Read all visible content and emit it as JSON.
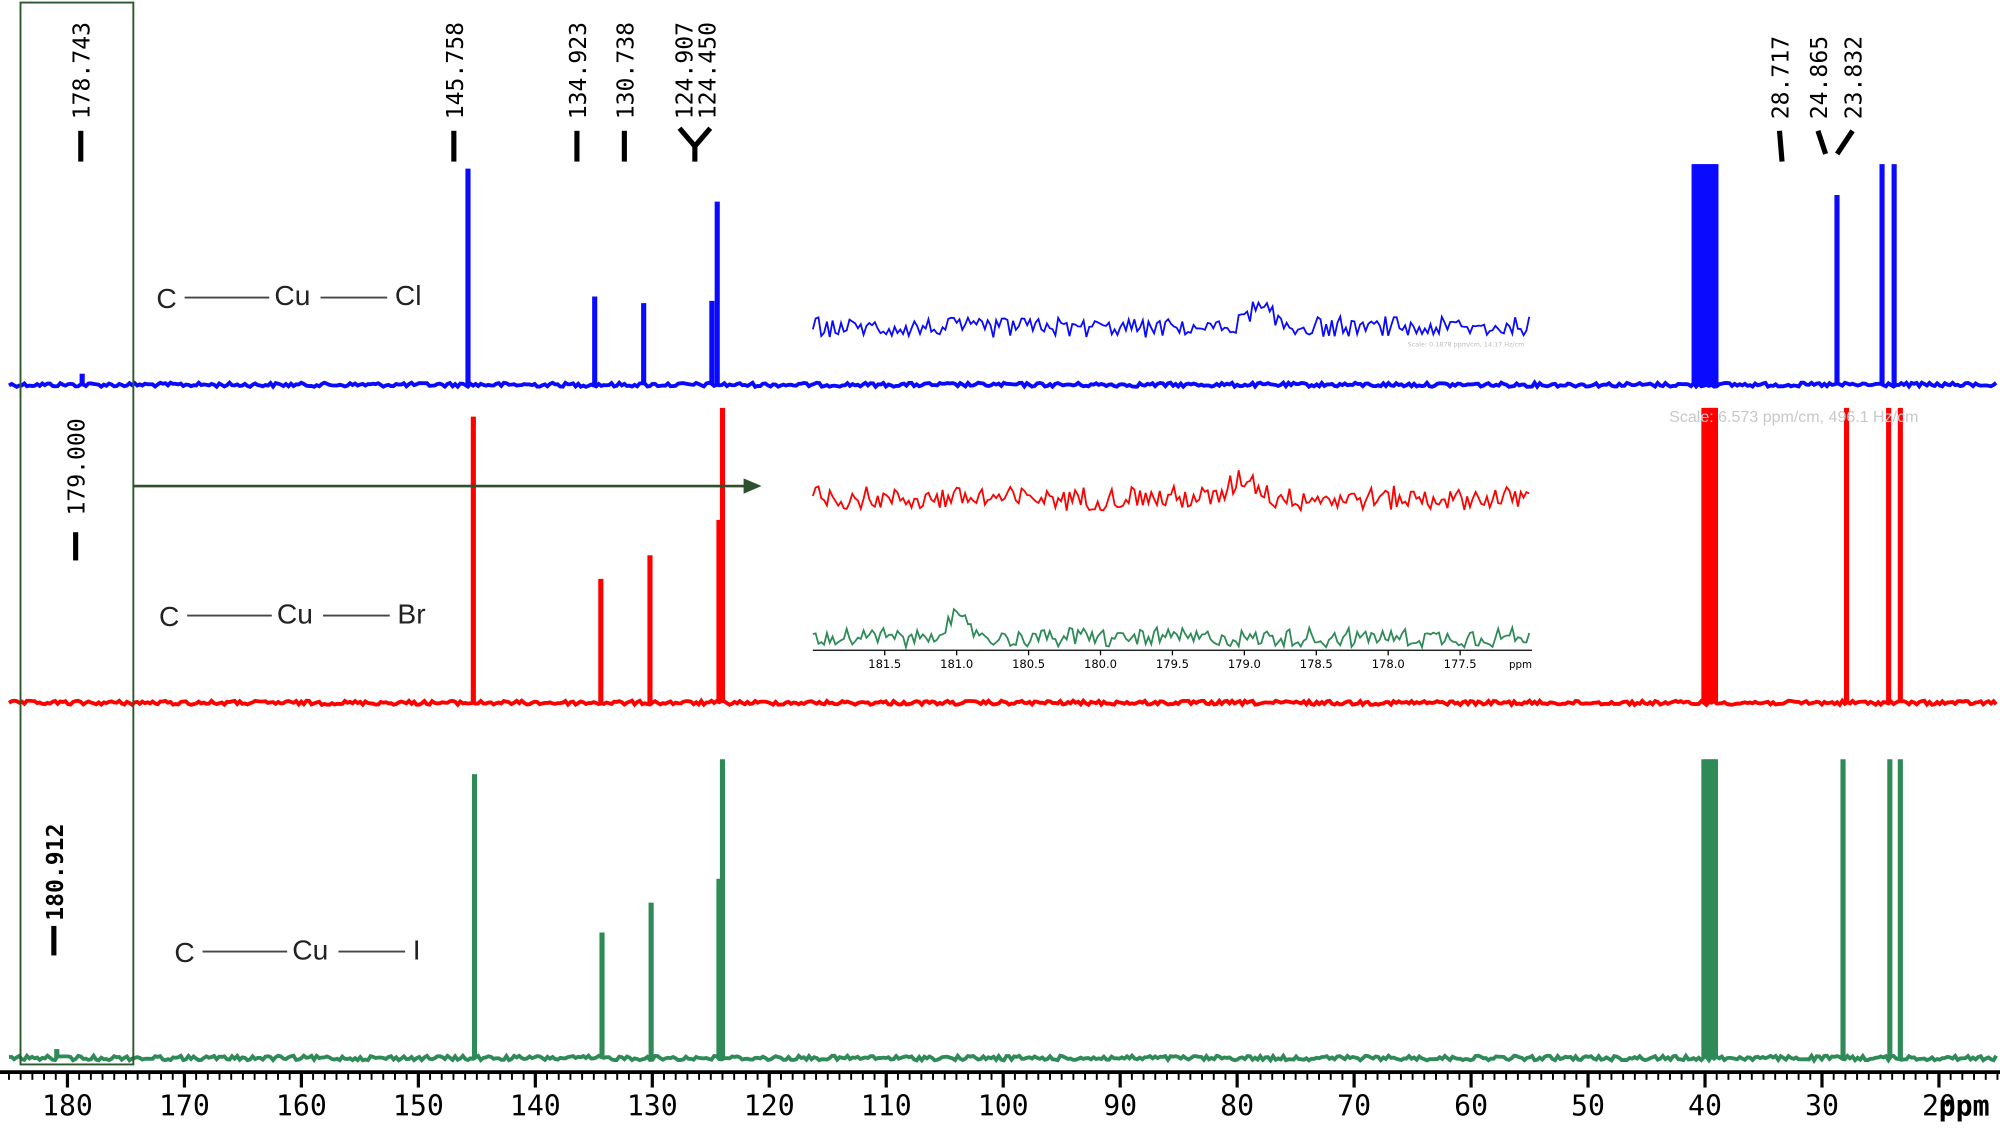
{
  "chart_data": {
    "type": "line",
    "x_unit": "ppm",
    "x_range": [
      185,
      15
    ],
    "x_ticks": [
      180,
      170,
      160,
      150,
      140,
      130,
      120,
      110,
      100,
      90,
      80,
      70,
      60,
      50,
      40,
      30,
      20
    ],
    "peak_labels": [
      "178.743",
      "145.758",
      "134.923",
      "130.738",
      "124.907",
      "124.450",
      "28.717",
      "24.865",
      "23.832"
    ],
    "side_labels": [
      "179.000",
      "180.912"
    ],
    "scale_text": "Scale: 6.573 ppm/cm, 496.1 Hz/cm",
    "series": [
      {
        "name": "C—Cu—Cl",
        "color": "#0a0aff",
        "formula": [
          "C",
          "Cu",
          "Cl"
        ],
        "peaks": [
          {
            "ppm": 178.743,
            "height": 0.05
          },
          {
            "ppm": 145.758,
            "height": 0.98
          },
          {
            "ppm": 134.923,
            "height": 0.4
          },
          {
            "ppm": 130.738,
            "height": 0.37
          },
          {
            "ppm": 124.907,
            "height": 0.38
          },
          {
            "ppm": 124.45,
            "height": 0.83
          },
          {
            "ppm": 40.0,
            "height": 1.0
          },
          {
            "ppm": 28.717,
            "height": 0.86
          },
          {
            "ppm": 24.865,
            "height": 1.0
          },
          {
            "ppm": 23.832,
            "height": 1.0
          }
        ]
      },
      {
        "name": "C—Cu—Br",
        "color": "#ff0000",
        "formula": [
          "C",
          "Cu",
          "Br"
        ],
        "peaks": [
          {
            "ppm": 179.0,
            "height": 0.01
          },
          {
            "ppm": 145.3,
            "height": 0.97
          },
          {
            "ppm": 134.4,
            "height": 0.42
          },
          {
            "ppm": 130.2,
            "height": 0.5
          },
          {
            "ppm": 124.3,
            "height": 0.62
          },
          {
            "ppm": 124.0,
            "height": 1.0
          },
          {
            "ppm": 39.6,
            "height": 1.0
          },
          {
            "ppm": 27.9,
            "height": 1.0
          },
          {
            "ppm": 24.3,
            "height": 1.0
          },
          {
            "ppm": 23.3,
            "height": 1.0
          }
        ]
      },
      {
        "name": "C—Cu—I",
        "color": "#2e8b57",
        "formula": [
          "C",
          "Cu",
          "I"
        ],
        "peaks": [
          {
            "ppm": 180.912,
            "height": 0.03
          },
          {
            "ppm": 145.2,
            "height": 0.95
          },
          {
            "ppm": 134.3,
            "height": 0.42
          },
          {
            "ppm": 130.1,
            "height": 0.52
          },
          {
            "ppm": 124.3,
            "height": 0.6
          },
          {
            "ppm": 124.0,
            "height": 1.0
          },
          {
            "ppm": 39.6,
            "height": 1.0
          },
          {
            "ppm": 28.2,
            "height": 1.0
          },
          {
            "ppm": 24.2,
            "height": 1.0
          },
          {
            "ppm": 23.3,
            "height": 1.0
          }
        ]
      }
    ],
    "inset": {
      "x_unit": "ppm",
      "x_range": [
        182.0,
        177.0
      ],
      "x_ticks": [
        181.5,
        181.0,
        180.5,
        180.0,
        179.5,
        179.0,
        178.5,
        178.0,
        177.5
      ],
      "broad_peaks": [
        {
          "series": "C—Cu—Cl",
          "ppm": 178.9,
          "height": 0.5
        },
        {
          "series": "C—Cu—Br",
          "ppm": 179.0,
          "height": 0.6
        },
        {
          "series": "C—Cu—I",
          "ppm": 181.0,
          "height": 0.5
        }
      ],
      "scale_text": "Scale: 0.1878 ppm/cm, 14.17 Hz/cm"
    }
  }
}
